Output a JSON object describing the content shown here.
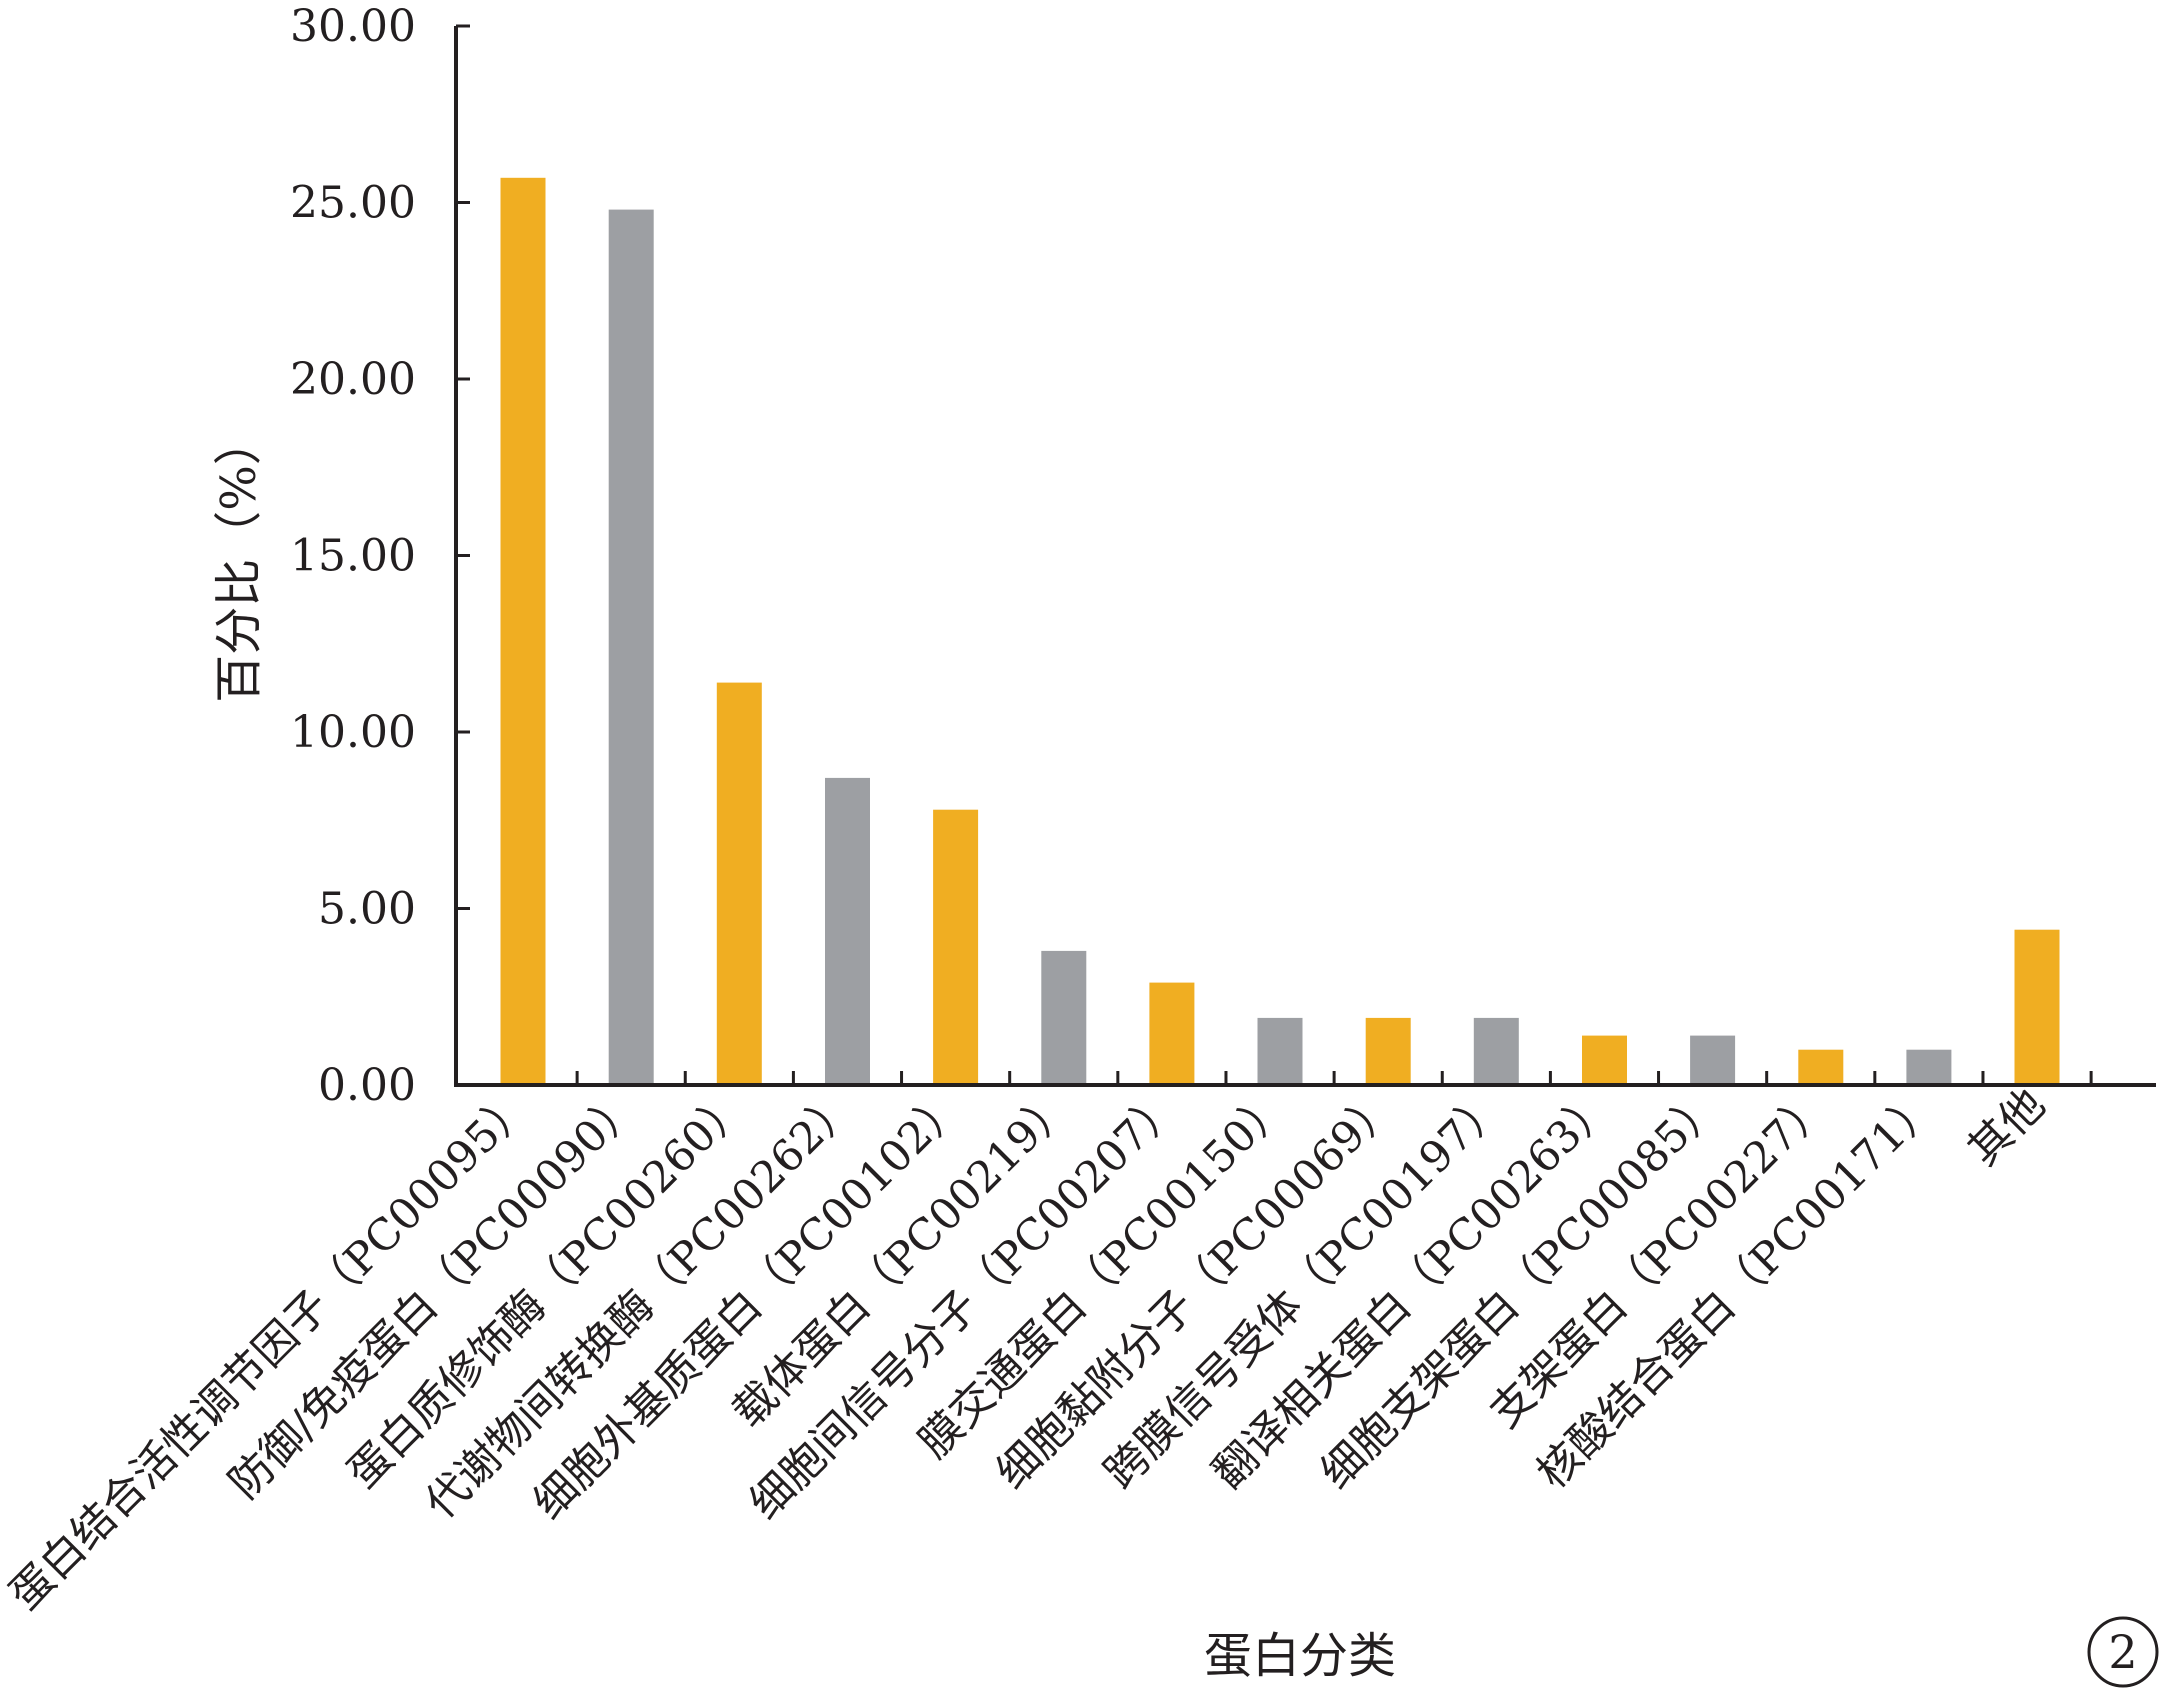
{
  "chart_data": {
    "type": "bar",
    "title": "",
    "xlabel": "蛋白分类",
    "ylabel": "百分比（%）",
    "ylim": [
      0,
      30
    ],
    "yticks": [
      "0.00",
      "5.00",
      "10.00",
      "15.00",
      "20.00",
      "25.00",
      "30.00"
    ],
    "ytick_values": [
      0,
      5,
      10,
      15,
      20,
      25,
      30
    ],
    "grid": false,
    "categories": [
      "蛋白结合活性调节因子（PC00095）",
      "防御/免疫蛋白（PC00090）",
      "蛋白质修饰酶（PC00260）",
      "代谢物间转换酶（PC00262）",
      "细胞外基质蛋白（PC00102）",
      "载体蛋白（PC00219）",
      "细胞间信号分子（PC00207）",
      "膜交通蛋白（PC00150）",
      "细胞黏附分子（PC00069）",
      "跨膜信号受体（PC00197）",
      "翻译相关蛋白（PC00263）",
      "细胞支架蛋白（PC00085）",
      "支架蛋白（PC00227）",
      "核酸结合蛋白（PC00171）",
      "其他"
    ],
    "values": [
      25.7,
      24.8,
      11.4,
      8.7,
      7.8,
      3.8,
      2.9,
      1.9,
      1.9,
      1.9,
      1.4,
      1.4,
      1.0,
      1.0,
      4.4
    ],
    "colors": [
      "#f0ae22",
      "#9d9fa3"
    ],
    "axis_color": "#231f20",
    "panel_label": "2"
  }
}
